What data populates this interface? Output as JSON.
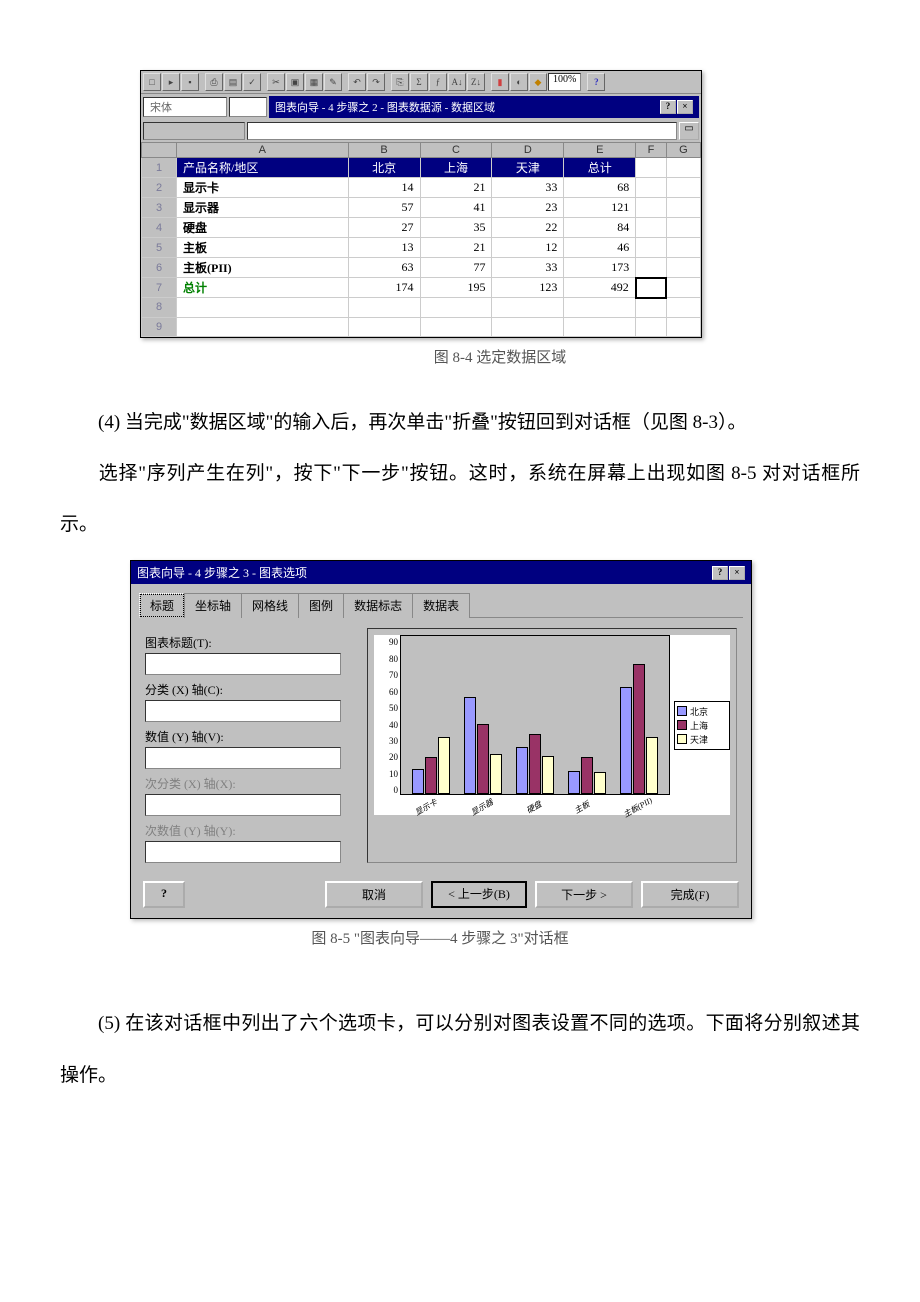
{
  "fig84": {
    "title_bar": "图表向导 - 4 步骤之 2 - 图表数据源 - 数据区域",
    "zoom": "100%",
    "font_name": "宋体",
    "columns": [
      "A",
      "B",
      "C",
      "D",
      "E",
      "F",
      "G"
    ],
    "rows": [
      {
        "n": 1,
        "a": "产品名称/地区",
        "b": "北京",
        "c": "上海",
        "d": "天津",
        "e": "总计",
        "header": true
      },
      {
        "n": 2,
        "a": "显示卡",
        "b": 14,
        "c": 21,
        "d": 33,
        "e": 68
      },
      {
        "n": 3,
        "a": "显示器",
        "b": 57,
        "c": 41,
        "d": 23,
        "e": 121
      },
      {
        "n": 4,
        "a": "硬盘",
        "b": 27,
        "c": 35,
        "d": 22,
        "e": 84
      },
      {
        "n": 5,
        "a": "主板",
        "b": 13,
        "c": 21,
        "d": 12,
        "e": 46
      },
      {
        "n": 6,
        "a": "主板(PII)",
        "b": 63,
        "c": 77,
        "d": 33,
        "e": 173
      },
      {
        "n": 7,
        "a": "总计",
        "b": 174,
        "c": 195,
        "d": 123,
        "e": 492,
        "total": true
      },
      {
        "n": 8
      },
      {
        "n": 9
      }
    ],
    "caption": "图 8-4  选定数据区域"
  },
  "paragraphs": {
    "p4a": "(4) 当完成\"数据区域\"的输入后，再次单击\"折叠\"按钮回到对话框（见图 8-3）。",
    "p4b": "选择\"序列产生在列\"，按下\"下一步\"按钮。这时，系统在屏幕上出现如图 8-5 对对话框所示。",
    "p5": "(5) 在该对话框中列出了六个选项卡，可以分别对图表设置不同的选项。下面将分别叙述其操作。"
  },
  "fig85": {
    "title": "图表向导 - 4 步骤之 3 - 图表选项",
    "tabs": [
      "标题",
      "坐标轴",
      "网格线",
      "图例",
      "数据标志",
      "数据表"
    ],
    "labels": {
      "chart_title": "图表标题(T):",
      "x_axis": "分类 (X) 轴(C):",
      "y_axis": "数值 (Y) 轴(V):",
      "x2_axis": "次分类 (X) 轴(X):",
      "y2_axis": "次数值 (Y) 轴(Y):"
    },
    "buttons": {
      "help": "?",
      "cancel": "取消",
      "back": "< 上一步(B)",
      "next": "下一步 >",
      "finish": "完成(F)"
    },
    "chart": {
      "categories": [
        "显示卡",
        "显示器",
        "硬盘",
        "主板",
        "主板(PII)"
      ],
      "series": [
        {
          "name": "北京",
          "color": "#9999ff",
          "values": [
            14,
            57,
            27,
            13,
            63
          ]
        },
        {
          "name": "上海",
          "color": "#993366",
          "values": [
            21,
            41,
            35,
            21,
            77
          ]
        },
        {
          "name": "天津",
          "color": "#ffffcc",
          "values": [
            33,
            23,
            22,
            12,
            33
          ]
        }
      ],
      "y_ticks": [
        90,
        80,
        70,
        60,
        50,
        40,
        30,
        20,
        10,
        0
      ],
      "ymax": 90
    },
    "caption": "图 8-5  \"图表向导——4 步骤之 3\"对话框"
  }
}
